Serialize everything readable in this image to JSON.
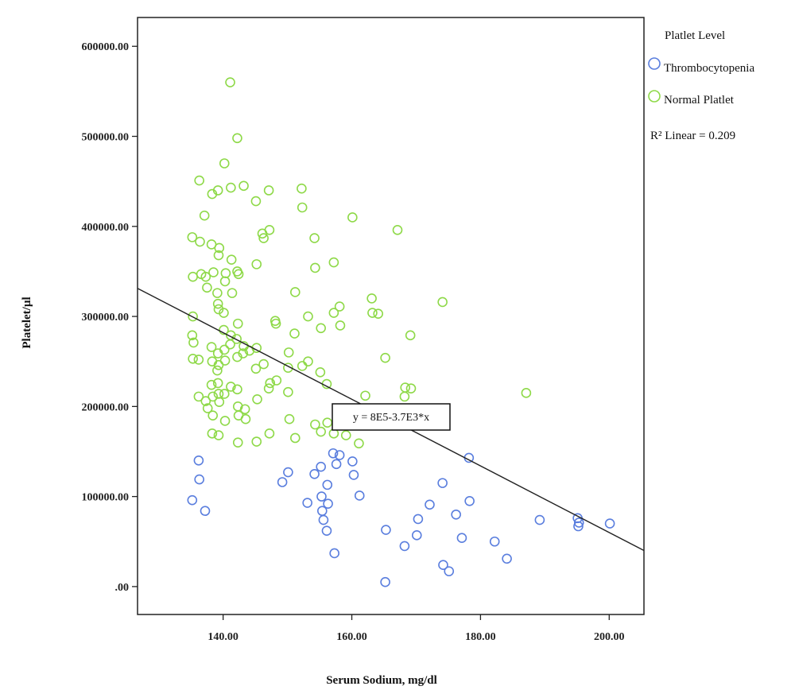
{
  "chart_data": {
    "type": "scatter",
    "xlabel": "Serum Sodium, mg/dl",
    "ylabel": "Platelet/µl",
    "xlim": [
      126.7,
      205.4
    ],
    "ylim": [
      -31000,
      632000
    ],
    "x_ticks": [
      140,
      160,
      180,
      200
    ],
    "x_tick_labels": [
      "140.00",
      "160.00",
      "180.00",
      "200.00"
    ],
    "y_ticks": [
      0,
      100000,
      200000,
      300000,
      400000,
      500000,
      600000
    ],
    "y_tick_labels": [
      ".00",
      "100000.00",
      "200000.00",
      "300000.00",
      "400000.00",
      "500000.00",
      "600000.00"
    ],
    "grid": false,
    "legend_position": "right",
    "legend_title": "Platlet Level",
    "series": [
      {
        "name": "Thrombocytopenia",
        "color": "#5a7ede",
        "marker": "open-circle",
        "points": [
          [
            136.2,
            140000
          ],
          [
            136.3,
            119000
          ],
          [
            135.2,
            96000
          ],
          [
            137.2,
            84000
          ],
          [
            149.2,
            116000
          ],
          [
            150.1,
            127000
          ],
          [
            153.1,
            93000
          ],
          [
            154.2,
            125000
          ],
          [
            155.2,
            133000
          ],
          [
            155.3,
            100000
          ],
          [
            155.4,
            84000
          ],
          [
            155.6,
            74000
          ],
          [
            156.2,
            113000
          ],
          [
            156.3,
            92000
          ],
          [
            156.1,
            62000
          ],
          [
            157.1,
            148000
          ],
          [
            157.6,
            136000
          ],
          [
            158.1,
            146000
          ],
          [
            157.3,
            37000
          ],
          [
            160.1,
            139000
          ],
          [
            160.3,
            124000
          ],
          [
            161.2,
            101000
          ],
          [
            165.3,
            63000
          ],
          [
            165.2,
            5000
          ],
          [
            168.2,
            45000
          ],
          [
            170.1,
            57000
          ],
          [
            170.3,
            75000
          ],
          [
            172.1,
            91000
          ],
          [
            174.1,
            115000
          ],
          [
            174.2,
            24000
          ],
          [
            175.1,
            17000
          ],
          [
            176.2,
            80000
          ],
          [
            177.1,
            54000
          ],
          [
            178.2,
            143000
          ],
          [
            178.3,
            95000
          ],
          [
            182.2,
            50000
          ],
          [
            184.1,
            31000
          ],
          [
            189.2,
            74000
          ],
          [
            195.1,
            76000
          ],
          [
            195.2,
            67000
          ],
          [
            195.3,
            71000
          ],
          [
            200.1,
            70000
          ]
        ]
      },
      {
        "name": "Normal Platlet",
        "color": "#8ed948",
        "marker": "open-circle",
        "points": [
          [
            141.1,
            560000
          ],
          [
            142.2,
            498000
          ],
          [
            140.2,
            470000
          ],
          [
            136.3,
            451000
          ],
          [
            141.2,
            443000
          ],
          [
            143.2,
            445000
          ],
          [
            138.3,
            436000
          ],
          [
            139.2,
            440000
          ],
          [
            145.1,
            428000
          ],
          [
            147.1,
            440000
          ],
          [
            152.2,
            442000
          ],
          [
            152.3,
            421000
          ],
          [
            137.1,
            412000
          ],
          [
            135.2,
            388000
          ],
          [
            136.4,
            383000
          ],
          [
            138.2,
            380000
          ],
          [
            139.4,
            376000
          ],
          [
            139.3,
            368000
          ],
          [
            141.3,
            363000
          ],
          [
            142.2,
            350000
          ],
          [
            142.4,
            347000
          ],
          [
            136.6,
            347000
          ],
          [
            137.3,
            344000
          ],
          [
            135.3,
            344000
          ],
          [
            138.5,
            349000
          ],
          [
            140.4,
            348000
          ],
          [
            140.3,
            339000
          ],
          [
            137.5,
            332000
          ],
          [
            141.4,
            326000
          ],
          [
            139.1,
            326000
          ],
          [
            139.2,
            314000
          ],
          [
            139.3,
            308000
          ],
          [
            140.1,
            304000
          ],
          [
            146.1,
            392000
          ],
          [
            147.2,
            396000
          ],
          [
            146.3,
            387000
          ],
          [
            145.2,
            358000
          ],
          [
            154.2,
            387000
          ],
          [
            154.3,
            354000
          ],
          [
            157.2,
            360000
          ],
          [
            160.1,
            410000
          ],
          [
            167.1,
            396000
          ],
          [
            151.2,
            327000
          ],
          [
            153.2,
            300000
          ],
          [
            158.1,
            311000
          ],
          [
            157.2,
            304000
          ],
          [
            158.2,
            290000
          ],
          [
            155.2,
            287000
          ],
          [
            163.1,
            320000
          ],
          [
            163.2,
            304000
          ],
          [
            164.1,
            303000
          ],
          [
            174.1,
            316000
          ],
          [
            169.1,
            279000
          ],
          [
            135.3,
            300000
          ],
          [
            135.2,
            279000
          ],
          [
            135.4,
            271000
          ],
          [
            136.2,
            252000
          ],
          [
            135.3,
            253000
          ],
          [
            138.2,
            266000
          ],
          [
            138.3,
            250000
          ],
          [
            139.2,
            259000
          ],
          [
            139.3,
            246000
          ],
          [
            139.1,
            240000
          ],
          [
            140.2,
            263000
          ],
          [
            140.3,
            251000
          ],
          [
            140.1,
            285000
          ],
          [
            141.2,
            279000
          ],
          [
            141.1,
            269000
          ],
          [
            142.3,
            292000
          ],
          [
            142.1,
            275000
          ],
          [
            142.2,
            255000
          ],
          [
            143.2,
            267000
          ],
          [
            143.1,
            259000
          ],
          [
            144.1,
            262000
          ],
          [
            145.2,
            265000
          ],
          [
            146.3,
            247000
          ],
          [
            145.1,
            242000
          ],
          [
            148.1,
            295000
          ],
          [
            148.2,
            292000
          ],
          [
            150.2,
            260000
          ],
          [
            150.1,
            243000
          ],
          [
            151.1,
            281000
          ],
          [
            152.3,
            245000
          ],
          [
            153.2,
            250000
          ],
          [
            155.1,
            238000
          ],
          [
            156.1,
            225000
          ],
          [
            165.2,
            254000
          ],
          [
            138.2,
            224000
          ],
          [
            139.2,
            226000
          ],
          [
            139.3,
            214000
          ],
          [
            138.4,
            211000
          ],
          [
            136.2,
            211000
          ],
          [
            137.3,
            206000
          ],
          [
            137.6,
            198000
          ],
          [
            138.4,
            190000
          ],
          [
            139.4,
            205000
          ],
          [
            140.2,
            214000
          ],
          [
            140.3,
            184000
          ],
          [
            141.2,
            222000
          ],
          [
            142.2,
            219000
          ],
          [
            142.3,
            200000
          ],
          [
            142.4,
            190000
          ],
          [
            143.4,
            197000
          ],
          [
            143.5,
            186000
          ],
          [
            145.3,
            208000
          ],
          [
            147.1,
            220000
          ],
          [
            147.3,
            226000
          ],
          [
            147.2,
            170000
          ],
          [
            148.3,
            229000
          ],
          [
            150.1,
            216000
          ],
          [
            150.3,
            186000
          ],
          [
            151.2,
            165000
          ],
          [
            154.3,
            180000
          ],
          [
            155.2,
            172000
          ],
          [
            156.2,
            182000
          ],
          [
            157.2,
            170000
          ],
          [
            159.1,
            168000
          ],
          [
            161.1,
            159000
          ],
          [
            162.1,
            212000
          ],
          [
            138.3,
            170000
          ],
          [
            139.3,
            168000
          ],
          [
            142.3,
            160000
          ],
          [
            145.2,
            161000
          ],
          [
            168.3,
            221000
          ],
          [
            169.2,
            220000
          ],
          [
            168.2,
            211000
          ],
          [
            187.1,
            215000
          ]
        ]
      }
    ],
    "regression": {
      "label": "R² Linear = 0.209",
      "equation": "y = 8E5-3.7E3*x",
      "intercept": 800000,
      "slope": -3700,
      "color": "#222222"
    }
  }
}
